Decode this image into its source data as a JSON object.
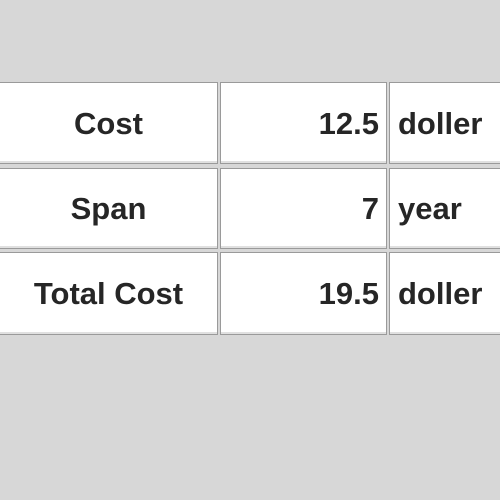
{
  "table": {
    "rows": [
      {
        "label": "Cost",
        "value": "12.5",
        "unit": "doller"
      },
      {
        "label": "Span",
        "value": "7",
        "unit": "year"
      },
      {
        "label": "Total Cost",
        "value": "19.5",
        "unit": "doller"
      }
    ]
  }
}
